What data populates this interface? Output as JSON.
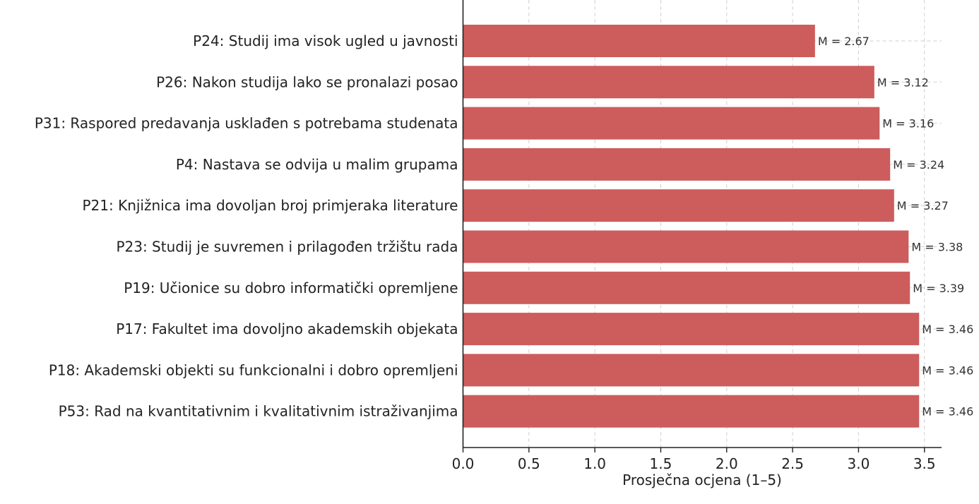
{
  "chart_data": {
    "type": "bar",
    "orientation": "horizontal",
    "categories": [
      "P24: Studij ima visok ugled u javnosti",
      "P26: Nakon studija lako se pronalazi posao",
      "P31: Raspored predavanja usklađen s potrebama studenata",
      "P4: Nastava se odvija u malim grupama",
      "P21: Knjižnica ima dovoljan broj primjeraka literature",
      "P23: Studij je suvremen i prilagođen tržištu rada",
      "P19: Učionice su dobro informatički opremljene",
      "P17: Fakultet ima dovoljno akademskih objekata",
      "P18: Akademski objekti su funkcionalni i dobro opremljeni",
      "P53: Rad na kvantitativnim i kvalitativnim istraživanjima"
    ],
    "values": [
      2.67,
      3.12,
      3.16,
      3.24,
      3.27,
      3.38,
      3.39,
      3.46,
      3.46,
      3.46
    ],
    "data_labels": [
      "M = 2.67",
      "M = 3.12",
      "M = 3.16",
      "M = 3.24",
      "M = 3.27",
      "M = 3.38",
      "M = 3.39",
      "M = 3.46",
      "M = 3.46",
      "M = 3.46"
    ],
    "xlabel": "Prosječna ocjena (1–5)",
    "ylabel": "",
    "xlim": [
      0,
      3.63
    ],
    "xticks": [
      0,
      0.5,
      1,
      1.5,
      2,
      2.5,
      3,
      3.5
    ],
    "xtick_labels": [
      "0.0",
      "0.5",
      "1.0",
      "1.5",
      "2.0",
      "2.5",
      "3.0",
      "3.5"
    ],
    "grid": true,
    "bar_color": "#cd5c5c",
    "axis_color": "#222222",
    "grid_color": "#cfcfcf"
  }
}
